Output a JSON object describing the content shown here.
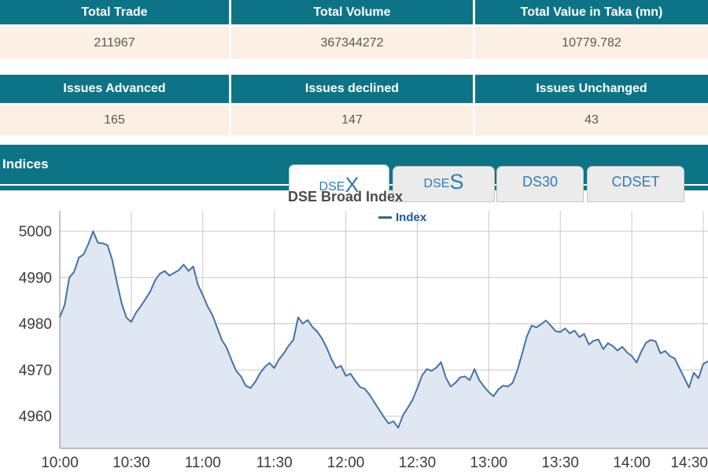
{
  "summary_table": {
    "headers": [
      "Total Trade",
      "Total Volume",
      "Total Value in Taka (mn)"
    ],
    "values": [
      "211967",
      "367344272",
      "10779.782"
    ]
  },
  "issues_table": {
    "headers": [
      "Issues Advanced",
      "Issues declined",
      "Issues Unchanged"
    ],
    "values": [
      "165",
      "147",
      "43"
    ]
  },
  "indices": {
    "section_title": "Indices",
    "tabs": [
      {
        "small": "DSE",
        "big": "X",
        "active": true
      },
      {
        "small": "DSE",
        "big": "S",
        "active": false
      },
      {
        "label": "DS30",
        "active": false
      },
      {
        "label": "CDSET",
        "active": false
      }
    ]
  },
  "chart_data": {
    "type": "area",
    "title": "DSE Broad Index",
    "legend": [
      {
        "name": "Index",
        "color": "#4572a7"
      }
    ],
    "x_ticks": [
      "10:00",
      "10:30",
      "11:00",
      "11:30",
      "12:00",
      "12:30",
      "13:00",
      "13:30",
      "14:00",
      "14:30"
    ],
    "y_ticks": [
      5000,
      4990,
      4980,
      4970,
      4960
    ],
    "ylim": [
      4953,
      5004.5
    ],
    "x_start_minute": 0,
    "x_interval_min": 2,
    "grid": true,
    "line_color": "#4572a7",
    "fill_color": "#dfe7f2",
    "values": [
      4981.4,
      4984,
      4990,
      4991.2,
      4994.3,
      4995,
      4997.3,
      5000,
      4997.5,
      4997.4,
      4997,
      4993.8,
      4988.9,
      4984.3,
      4981.3,
      4980.4,
      4982.4,
      4983.8,
      4985.4,
      4987,
      4989.4,
      4990.8,
      4991.4,
      4990.4,
      4991,
      4991.6,
      4992.8,
      4991.4,
      4992.4,
      4988.4,
      4986.2,
      4983.8,
      4981.9,
      4979.2,
      4976.5,
      4974.8,
      4972.2,
      4969.8,
      4968.6,
      4966.6,
      4966.1,
      4967.4,
      4969.3,
      4970.6,
      4971.5,
      4970.4,
      4972.3,
      4973.6,
      4975.2,
      4976.5,
      4981.4,
      4980,
      4980.8,
      4979.3,
      4978.3,
      4976.8,
      4974.8,
      4972.3,
      4970.4,
      4970.9,
      4968.7,
      4969.2,
      4967.6,
      4966.3,
      4965.9,
      4964.6,
      4963,
      4961.4,
      4959.8,
      4958.4,
      4958.9,
      4957.5,
      4960.2,
      4961.8,
      4963.5,
      4966,
      4968.8,
      4970.2,
      4969.8,
      4970.5,
      4971.7,
      4968.3,
      4966.4,
      4967.2,
      4968.4,
      4968.6,
      4967.8,
      4970.2,
      4967.8,
      4966.4,
      4965.2,
      4964.3,
      4965.8,
      4966.6,
      4966.4,
      4967.2,
      4970,
      4973.5,
      4977.3,
      4979.6,
      4979.2,
      4979.9,
      4980.7,
      4979.6,
      4978.4,
      4978.2,
      4979,
      4977.9,
      4978.5,
      4977.1,
      4977.8,
      4975.5,
      4976.3,
      4976.6,
      4974.5,
      4975.8,
      4975.2,
      4974.2,
      4975,
      4973.8,
      4973,
      4971.6,
      4974,
      4975.9,
      4976.5,
      4976.2,
      4973.6,
      4974.1,
      4973,
      4972.5,
      4970.4,
      4968.3,
      4966.2,
      4969.4,
      4968.2,
      4971.3,
      4971.9
    ]
  },
  "theme": {
    "teal": "#0d7487",
    "row_peach": "#fcefe3",
    "tab_text_blue": "#2f7cb4",
    "legend_text_blue": "#1d5a96",
    "axis_label_color": "#3c3c3c"
  }
}
